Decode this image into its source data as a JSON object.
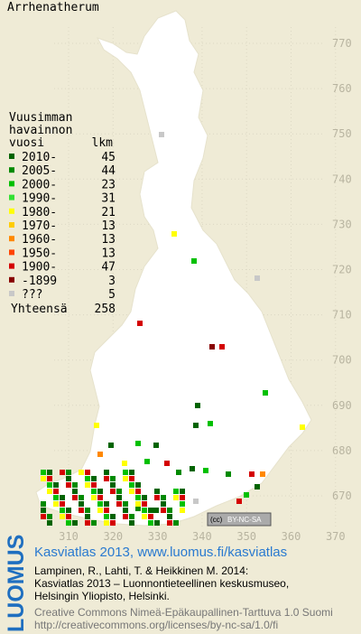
{
  "title": "Arrhenatherum",
  "legend": {
    "heading": [
      "Vuusimman",
      "havainnon",
      "vuosi"
    ],
    "count_heading": "lkm",
    "items": [
      {
        "label": "2010-",
        "count": 45,
        "color": "#006400"
      },
      {
        "label": "2005-",
        "count": 44,
        "color": "#008a00"
      },
      {
        "label": "2000-",
        "count": 23,
        "color": "#00c000"
      },
      {
        "label": "1990-",
        "count": 31,
        "color": "#33e033"
      },
      {
        "label": "1980-",
        "count": 21,
        "color": "#ffff00"
      },
      {
        "label": "1970-",
        "count": 13,
        "color": "#ffcc00"
      },
      {
        "label": "1960-",
        "count": 13,
        "color": "#ff8800"
      },
      {
        "label": "1950-",
        "count": 13,
        "color": "#ff4400"
      },
      {
        "label": "1900-",
        "count": 47,
        "color": "#d40000"
      },
      {
        "label": "-1899",
        "count": 3,
        "color": "#880000"
      },
      {
        "label": "???",
        "count": 5,
        "color": "#c8c8c8"
      }
    ],
    "total_label": "Yhteensä",
    "total": 258
  },
  "map": {
    "y_ticks": [
      770,
      760,
      750,
      740,
      730,
      720,
      710,
      700,
      690,
      680,
      670
    ],
    "x_ticks": [
      310,
      320,
      330,
      340,
      350,
      360,
      370
    ],
    "badge": [
      "(cc)",
      "BY-NC-SA"
    ]
  },
  "footer": {
    "logo": "LUOMUS",
    "link": "Kasviatlas 2013, www.luomus.fi/kasviatlas",
    "citation": [
      "Lampinen, R., Lahti, T. & Heikkinen M. 2014:",
      "Kasviatlas 2013 – Luonnontieteellinen keskusmuseo,",
      "Helsingin Yliopisto, Helsinki."
    ],
    "license": [
      "Creative Commons Nimeä-Epäkaupallinen-Tarttuva 1.0 Suomi",
      "http://creativecommons.org/licenses/by-nc-sa/1.0/fi"
    ]
  }
}
